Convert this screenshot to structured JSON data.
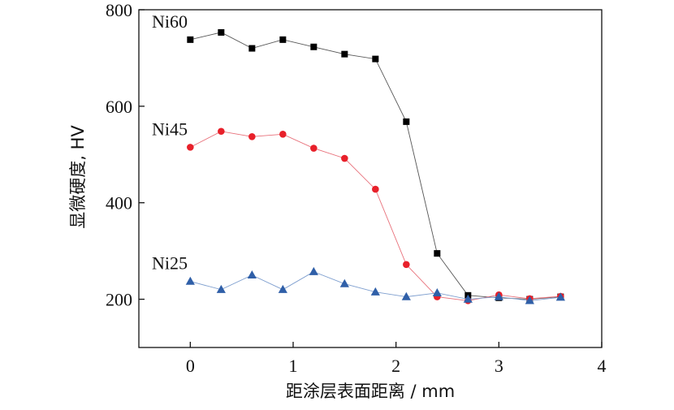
{
  "chart_data": {
    "type": "line",
    "xlabel": "距涂层表面距离 / mm",
    "ylabel": "显微硬度, HV",
    "xlim": [
      -0.5,
      4
    ],
    "ylim": [
      100,
      800
    ],
    "xticks": [
      0,
      1,
      2,
      3,
      4
    ],
    "yticks": [
      200,
      400,
      600,
      800
    ],
    "grid": false,
    "series": [
      {
        "name": "Ni60",
        "marker": "square",
        "color": "#000000",
        "line_color": "#555555",
        "x": [
          0,
          0.3,
          0.6,
          0.9,
          1.2,
          1.5,
          1.8,
          2.1,
          2.4,
          2.7,
          3.0,
          3.3,
          3.6
        ],
        "y": [
          738,
          753,
          720,
          738,
          723,
          708,
          698,
          568,
          295,
          208,
          203,
          200,
          205
        ]
      },
      {
        "name": "Ni45",
        "marker": "circle",
        "color": "#e8202a",
        "line_color": "#e8707a",
        "x": [
          0,
          0.3,
          0.6,
          0.9,
          1.2,
          1.5,
          1.8,
          2.1,
          2.4,
          2.7,
          3.0,
          3.3,
          3.6
        ],
        "y": [
          515,
          548,
          537,
          542,
          513,
          492,
          428,
          272,
          205,
          197,
          209,
          201,
          206
        ]
      },
      {
        "name": "Ni25",
        "marker": "triangle",
        "color": "#2f5fa8",
        "line_color": "#7f9fcf",
        "x": [
          0,
          0.3,
          0.6,
          0.9,
          1.2,
          1.5,
          1.8,
          2.1,
          2.4,
          2.7,
          3.0,
          3.3,
          3.6
        ],
        "y": [
          237,
          220,
          250,
          220,
          257,
          232,
          215,
          205,
          213,
          200,
          205,
          197,
          204
        ]
      }
    ]
  }
}
